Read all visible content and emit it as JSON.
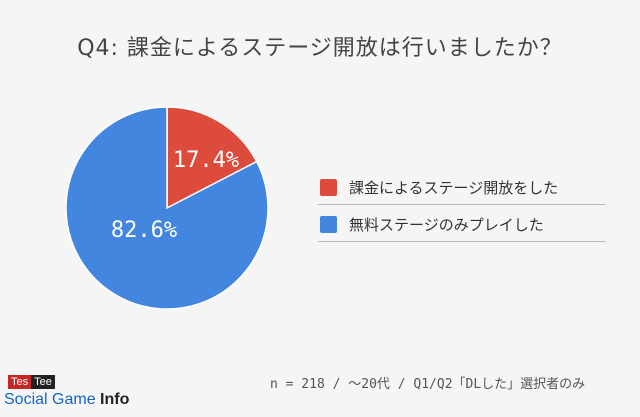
{
  "title": "Q4: 課金によるステージ開放は行いましたか？",
  "footnote": "n = 218 / ～20代 / Q1/Q2「DLした」選択者のみ",
  "logo": {
    "tes": "Tes",
    "tee": "Tee",
    "brand_main": "Social Game ",
    "brand_bold": "Info"
  },
  "chart_data": {
    "type": "pie",
    "title": "Q4: 課金によるステージ開放は行いましたか？",
    "slices": [
      {
        "label": "課金によるステージ開放をした",
        "value": 17.4,
        "display": "17.4%",
        "color": "#dc4b3c"
      },
      {
        "label": "無料ステージのみプレイした",
        "value": 82.6,
        "display": "82.6%",
        "color": "#4286e0"
      }
    ],
    "legend_position": "right"
  }
}
